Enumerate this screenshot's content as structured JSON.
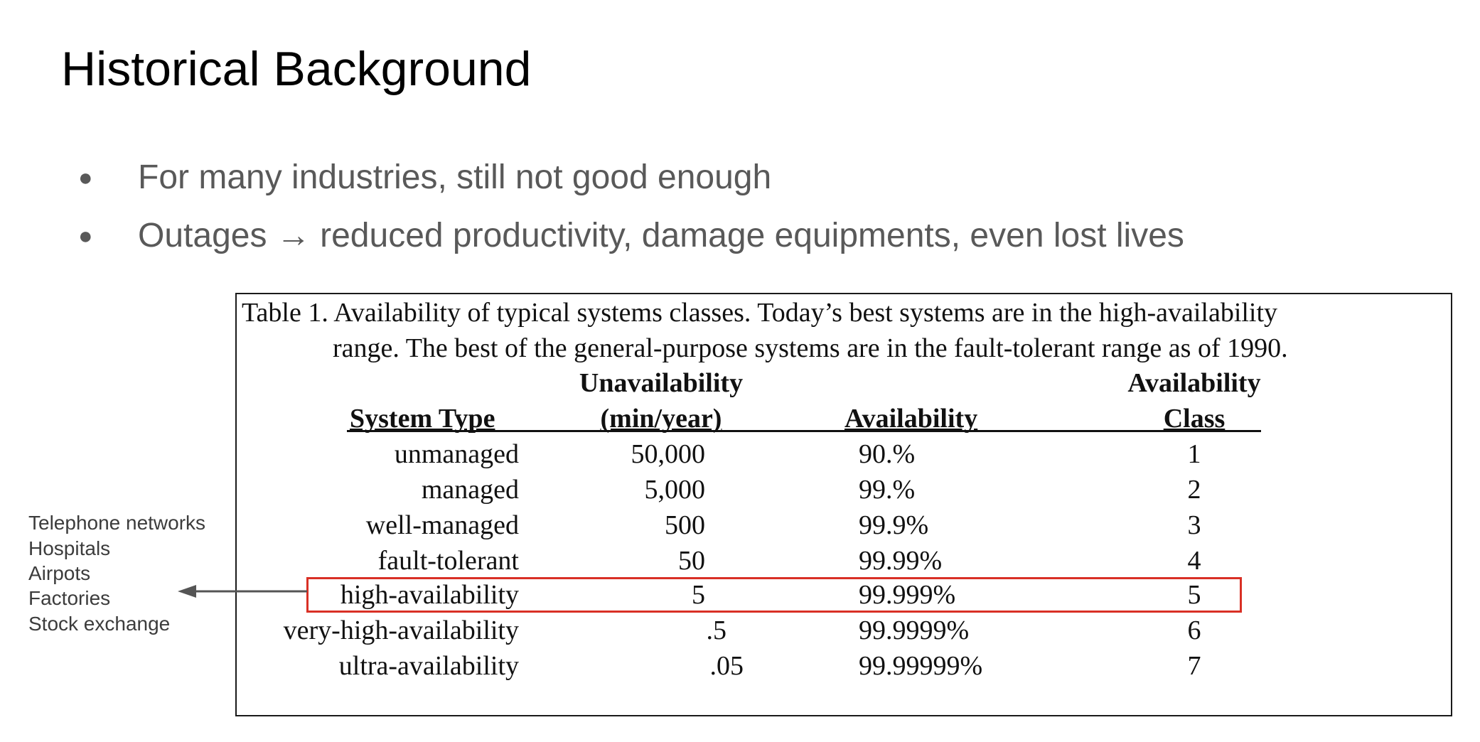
{
  "slide": {
    "title": "Historical Background",
    "bullets": [
      "For many industries, still not good enough",
      "Outages → reduced productivity, damage equipments, even lost lives"
    ],
    "bullet_marker": "●"
  },
  "table": {
    "caption_line1": "Table 1. Availability of typical systems classes.  Today’s best systems are in the high-availability",
    "caption_line2": "range. The best of the general-purpose systems are in the fault-tolerant range as of 1990.",
    "headers": {
      "system_type": "System Type",
      "unavail_top": "Unavailability",
      "unavail_bottom": "(min/year)",
      "availability": "Availability",
      "class_top": "Availability",
      "class_bottom": "Class"
    },
    "rows": [
      {
        "type": "unmanaged",
        "unavail": "50,000",
        "avail": "90.%",
        "cls": "1"
      },
      {
        "type": "managed",
        "unavail": "5,000",
        "avail": "99.%",
        "cls": "2"
      },
      {
        "type": "well-managed",
        "unavail": "500",
        "avail": "99.9%",
        "cls": "3"
      },
      {
        "type": "fault-tolerant",
        "unavail": "50",
        "avail": "99.99%",
        "cls": "4"
      },
      {
        "type": "high-availability",
        "unavail": "5",
        "avail": "99.999%",
        "cls": "5"
      },
      {
        "type": "very-high-availability",
        "unavail": ".5",
        "avail": "99.9999%",
        "cls": "6"
      },
      {
        "type": "ultra-availability",
        "unavail": ".05",
        "avail": "99.99999%",
        "cls": "7"
      }
    ],
    "highlight_color": "#d93025"
  },
  "annotation": {
    "items": [
      "Telephone networks",
      "Hospitals",
      "Airpots",
      "Factories",
      "Stock exchange"
    ]
  }
}
